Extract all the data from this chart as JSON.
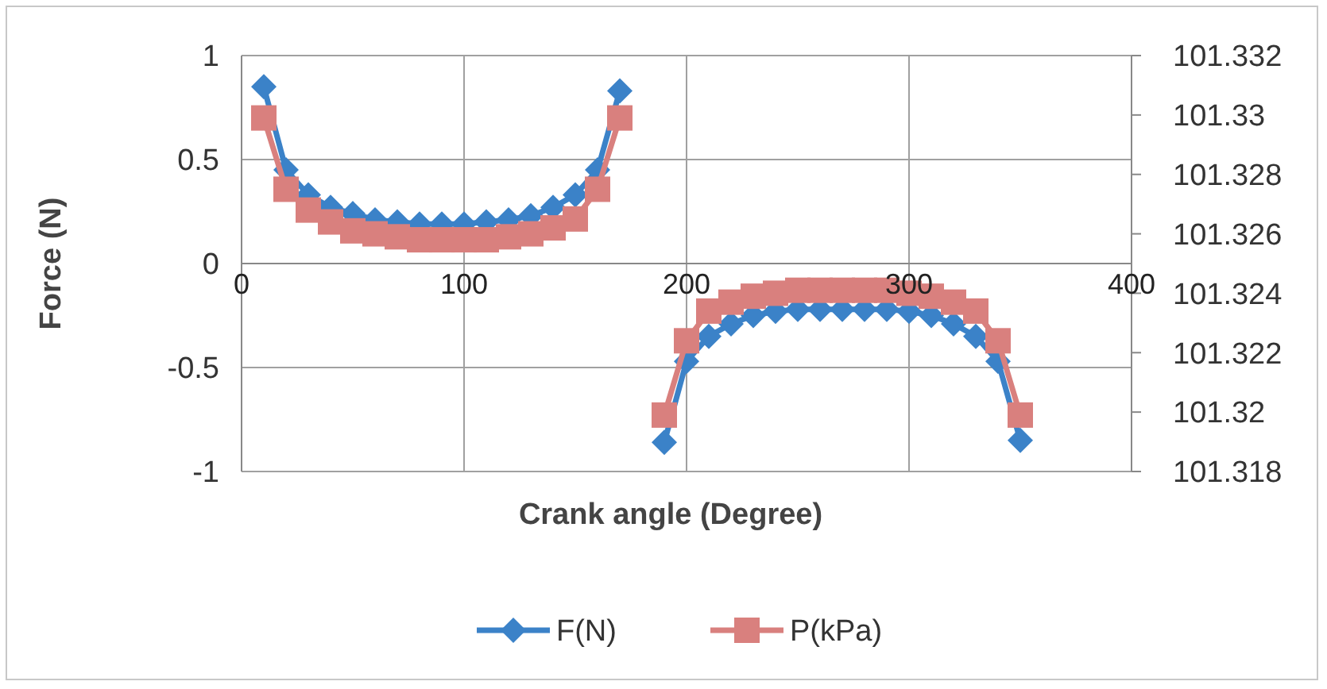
{
  "chart_data": {
    "type": "line",
    "xlabel": "Crank angle (Degree)",
    "ylabel": "Force (N)",
    "xlim": [
      0,
      400
    ],
    "xticks": [
      0,
      100,
      200,
      300,
      400
    ],
    "ylim": [
      -1,
      1
    ],
    "yticks": [
      -1,
      -0.5,
      0,
      0.5,
      1
    ],
    "y2lim": [
      101.318,
      101.332
    ],
    "y2ticks": [
      101.318,
      {
        "value": 101.32,
        "label": "101.32"
      },
      101.322,
      101.324,
      101.326,
      101.328,
      {
        "value": 101.33,
        "label": "101.33"
      },
      101.332
    ],
    "grid": true,
    "legend": "bottom",
    "x": [
      10,
      20,
      30,
      40,
      50,
      60,
      70,
      80,
      90,
      100,
      110,
      120,
      130,
      140,
      150,
      160,
      170,
      null,
      190,
      200,
      210,
      220,
      230,
      240,
      250,
      260,
      270,
      280,
      290,
      300,
      310,
      320,
      330,
      340,
      350
    ],
    "series": [
      {
        "name": "F(N)",
        "color": "#3b82c8",
        "marker": "diamond",
        "values": [
          0.85,
          0.45,
          0.33,
          0.27,
          0.24,
          0.21,
          0.2,
          0.19,
          0.19,
          0.19,
          0.2,
          0.21,
          0.23,
          0.27,
          0.33,
          0.45,
          0.83,
          null,
          -0.86,
          -0.47,
          -0.35,
          -0.29,
          -0.25,
          -0.23,
          -0.22,
          -0.22,
          -0.22,
          -0.22,
          -0.22,
          -0.23,
          -0.25,
          -0.29,
          -0.35,
          -0.47,
          -0.85
        ]
      },
      {
        "name": "P(kPa)",
        "color": "#d9807e",
        "marker": "square",
        "axis": "y2",
        "values": [
          101.3299,
          101.3275,
          101.3268,
          101.3264,
          101.3261,
          101.326,
          101.3259,
          101.3258,
          101.3258,
          101.3258,
          101.3258,
          101.3259,
          101.326,
          101.3262,
          101.3265,
          101.3275,
          101.3299,
          null,
          101.3199,
          101.3224,
          101.3234,
          101.3237,
          101.3239,
          101.324,
          101.3241,
          101.3241,
          101.3241,
          101.3241,
          101.3241,
          101.324,
          101.3239,
          101.3237,
          101.3234,
          101.3224,
          101.3199
        ]
      }
    ]
  }
}
